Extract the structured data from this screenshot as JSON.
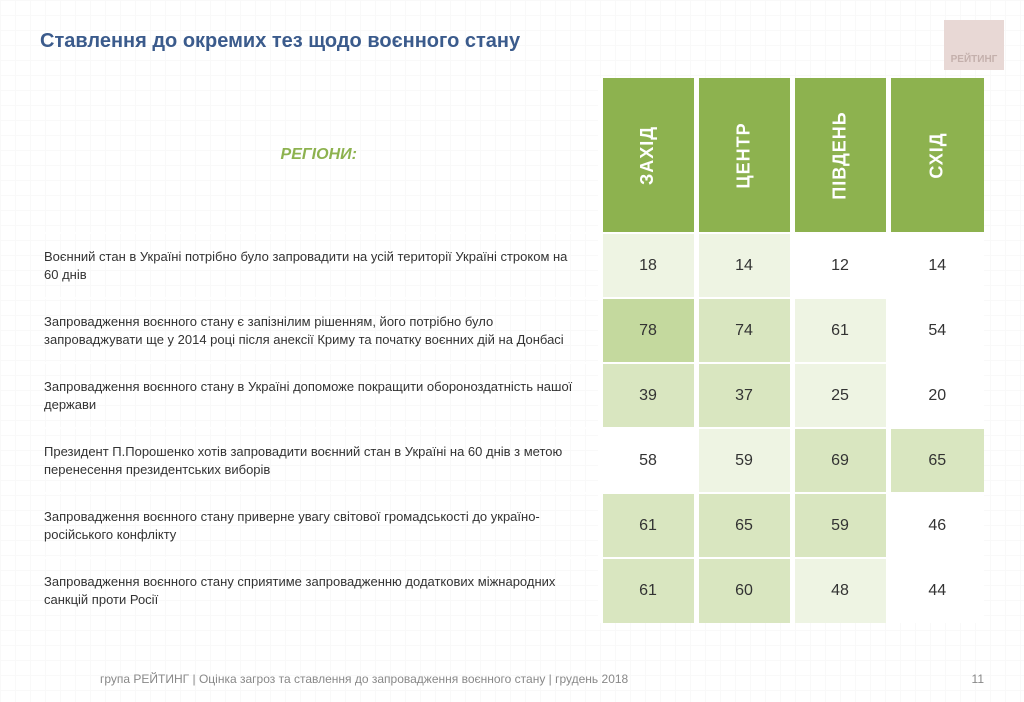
{
  "title": "Ставлення до окремих тез щодо воєнного стану",
  "logo_text": "РЕЙТИНГ",
  "regions_label": "РЕГІОНИ:",
  "columns": [
    "ЗАХІД",
    "ЦЕНТР",
    "ПІВДЕНЬ",
    "СХІД"
  ],
  "header_bg": "#8db24f",
  "header_fg": "#ffffff",
  "shade_colors": [
    "#ffffff",
    "#eef4e3",
    "#d9e6c0",
    "#c4d99e"
  ],
  "title_color": "#3b5b8c",
  "rows": [
    {
      "label": "Воєнний стан в Україні потрібно було запровадити на усій території Україні строком на 60 днів",
      "values": [
        18,
        14,
        12,
        14
      ],
      "shades": [
        1,
        1,
        0,
        0
      ]
    },
    {
      "label": "Запровадження воєнного стану є запізнілим рішенням, його потрібно було запроваджувати ще у 2014 році після анексії Криму та початку воєнних дій на Донбасі",
      "values": [
        78,
        74,
        61,
        54
      ],
      "shades": [
        3,
        2,
        1,
        0
      ]
    },
    {
      "label": "Запровадження воєнного стану в Україні допоможе покращити обороноздатність нашої держави",
      "values": [
        39,
        37,
        25,
        20
      ],
      "shades": [
        2,
        2,
        1,
        0
      ]
    },
    {
      "label": "Президент П.Порошенко хотів запровадити воєнний стан в Україні на 60 днів з метою перенесення президентських виборів",
      "values": [
        58,
        59,
        69,
        65
      ],
      "shades": [
        0,
        1,
        2,
        2
      ]
    },
    {
      "label": "Запровадження воєнного стану приверне увагу світової громадськості до україно-російського конфлікту",
      "values": [
        61,
        65,
        59,
        46
      ],
      "shades": [
        2,
        2,
        2,
        0
      ]
    },
    {
      "label": "Запровадження воєнного стану сприятиме запровадженню додаткових міжнародних санкцій проти Росії",
      "values": [
        61,
        60,
        48,
        44
      ],
      "shades": [
        2,
        2,
        1,
        0
      ]
    }
  ],
  "footer_text": "група РЕЙТИНГ | Оцінка загроз та ставлення до запровадження воєнного стану | грудень 2018",
  "page_number": "11"
}
